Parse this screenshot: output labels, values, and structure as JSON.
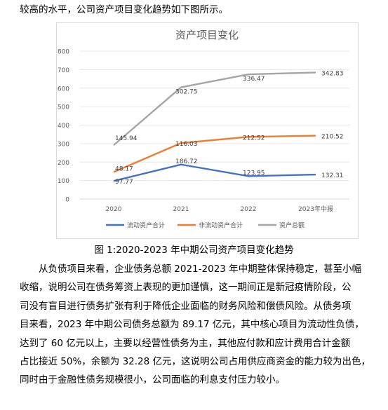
{
  "intro_text": "较高的水平，公司资产项目变化趋势如下图所示。",
  "chart_data": {
    "type": "line",
    "title": "资产项目变化",
    "categories": [
      "2020",
      "2021",
      "2022",
      "2023年中报"
    ],
    "ylim": [
      0,
      800
    ],
    "yticks": [
      "0",
      "100",
      "200",
      "300",
      "400",
      "500",
      "600",
      "700",
      "800"
    ],
    "grid": true,
    "legend_position": "bottom",
    "series": [
      {
        "name": "流动资产合计",
        "color": "#4472c4",
        "values": [
          97.77,
          186.72,
          123.95,
          132.31
        ],
        "labels": [
          "97.77",
          "186.72",
          "123.95",
          "132.31"
        ]
      },
      {
        "name": "非流动资产合计",
        "color": "#ed7d31",
        "values": [
          145.94,
          302.75,
          336.47,
          342.83
        ],
        "labels": [
          "48.17",
          "116.03",
          "212.52",
          "210.52"
        ]
      },
      {
        "name": "资产总额",
        "color": "#a5a5a5",
        "values": [
          291.4,
          604.6,
          674.6,
          684.6
        ],
        "labels": [
          "145.94",
          "302.75",
          "336.47",
          "342.83"
        ]
      }
    ]
  },
  "caption": "图 1:2020-2023 年中期公司资产项目变化趋势",
  "paragraph_lines": [
    "从负债项目来看，企业债务总额 2021-2023 年中期整体保持稳定，甚至小幅",
    "收缩，说明公司在债务筹资上表现的更加谨慎，这一期间正是新冠疫情阶段，公",
    "司没有盲目进行债务扩张有利于降低企业面临的财务风险和偿债风险。从债务项",
    "目来看，2023 年中期公司债务总额为 89.17 亿元，其中核心项目为流动性负债，",
    "达到了 60 亿元以上，主要以经营性债务为主，其他应付款和应计费用合计金额",
    "占比接近 50%，余额为 32.28 亿元，这说明公司占用供应商资金的能力较为出色，",
    "同时由于金融性债务规模很小，公司面临的利息支付压力较小。"
  ]
}
